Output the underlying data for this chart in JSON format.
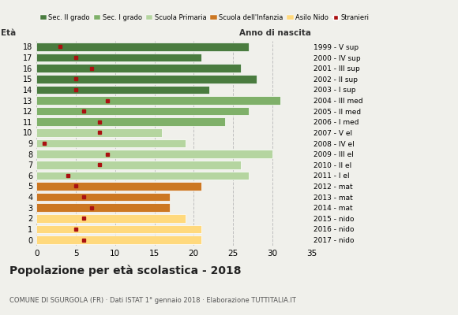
{
  "ages": [
    18,
    17,
    16,
    15,
    14,
    13,
    12,
    11,
    10,
    9,
    8,
    7,
    6,
    5,
    4,
    3,
    2,
    1,
    0
  ],
  "years": [
    "1999 - V sup",
    "2000 - IV sup",
    "2001 - III sup",
    "2002 - II sup",
    "2003 - I sup",
    "2004 - III med",
    "2005 - II med",
    "2006 - I med",
    "2007 - V el",
    "2008 - IV el",
    "2009 - III el",
    "2010 - II el",
    "2011 - I el",
    "2012 - mat",
    "2013 - mat",
    "2014 - mat",
    "2015 - nido",
    "2016 - nido",
    "2017 - nido"
  ],
  "bar_values": [
    27,
    21,
    26,
    28,
    22,
    31,
    27,
    24,
    16,
    19,
    30,
    26,
    27,
    21,
    17,
    17,
    19,
    21,
    21
  ],
  "stranieri": [
    3,
    5,
    7,
    5,
    5,
    9,
    6,
    8,
    8,
    1,
    9,
    8,
    4,
    5,
    6,
    7,
    6,
    5,
    6
  ],
  "bar_colors": [
    "#4a7c3f",
    "#4a7c3f",
    "#4a7c3f",
    "#4a7c3f",
    "#4a7c3f",
    "#7fb069",
    "#7fb069",
    "#7fb069",
    "#b5d5a0",
    "#b5d5a0",
    "#b5d5a0",
    "#b5d5a0",
    "#b5d5a0",
    "#cc7722",
    "#cc7722",
    "#cc7722",
    "#ffd97d",
    "#ffd97d",
    "#ffd97d"
  ],
  "legend_labels": [
    "Sec. II grado",
    "Sec. I grado",
    "Scuola Primaria",
    "Scuola dell'Infanzia",
    "Asilo Nido",
    "Stranieri"
  ],
  "legend_colors": [
    "#4a7c3f",
    "#7fb069",
    "#b5d5a0",
    "#cc7722",
    "#ffd97d",
    "#aa1111"
  ],
  "title": "Popolazione per età scolastica - 2018",
  "subtitle": "COMUNE DI SGURGOLA (FR) · Dati ISTAT 1° gennaio 2018 · Elaborazione TUTTITALIA.IT",
  "xlabel_eta": "Età",
  "xlabel_anno": "Anno di nascita",
  "xlim": [
    0,
    35
  ],
  "xticks": [
    0,
    5,
    10,
    15,
    20,
    25,
    30,
    35
  ],
  "stranieri_color": "#aa1111",
  "bar_height": 0.78,
  "bg_color": "#f0f0eb",
  "grid_color": "#bbbbbb"
}
